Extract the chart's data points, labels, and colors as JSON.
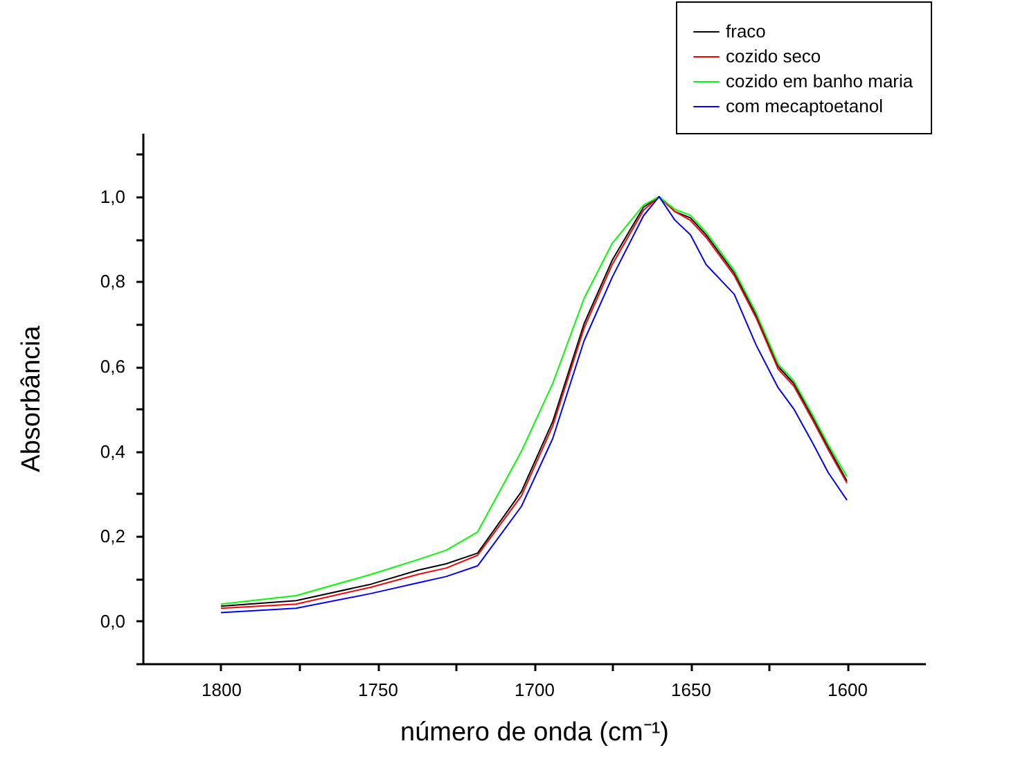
{
  "chart_data": {
    "type": "line",
    "xlabel": "número de onda (cm⁻¹)",
    "ylabel": "Absorbância",
    "x": [
      1800,
      1776,
      1752,
      1737,
      1728,
      1718,
      1704,
      1694,
      1684,
      1675,
      1665,
      1660,
      1655,
      1650,
      1645,
      1636,
      1629,
      1622,
      1617,
      1611,
      1606,
      1600
    ],
    "series": [
      {
        "name": "fraco",
        "color": "#000000",
        "values": [
          0.035,
          0.048,
          0.087,
          0.12,
          0.135,
          0.16,
          0.305,
          0.47,
          0.7,
          0.85,
          0.975,
          1.0,
          0.965,
          0.95,
          0.91,
          0.82,
          0.72,
          0.6,
          0.56,
          0.48,
          0.41,
          0.33
        ]
      },
      {
        "name": "cozido seco",
        "color": "#ff0000",
        "values": [
          0.03,
          0.04,
          0.08,
          0.11,
          0.125,
          0.155,
          0.295,
          0.46,
          0.69,
          0.84,
          0.968,
          1.0,
          0.965,
          0.944,
          0.904,
          0.814,
          0.714,
          0.594,
          0.554,
          0.474,
          0.404,
          0.325
        ]
      },
      {
        "name": "cozido em banho maria",
        "color": "#00ff00",
        "values": [
          0.04,
          0.06,
          0.11,
          0.145,
          0.167,
          0.21,
          0.4,
          0.56,
          0.76,
          0.89,
          0.98,
          1.0,
          0.97,
          0.956,
          0.916,
          0.826,
          0.726,
          0.606,
          0.566,
          0.486,
          0.416,
          0.34
        ]
      },
      {
        "name": "com mecaptoetanol",
        "color": "#0000ff",
        "values": [
          0.02,
          0.03,
          0.065,
          0.09,
          0.105,
          0.13,
          0.27,
          0.43,
          0.66,
          0.81,
          0.955,
          1.0,
          0.945,
          0.91,
          0.84,
          0.77,
          0.65,
          0.55,
          0.5,
          0.42,
          0.35,
          0.285
        ]
      }
    ],
    "xlim": [
      1825,
      1575
    ],
    "xticks": [
      1800,
      {
        "value": 1775,
        "label": null
      },
      1750,
      {
        "value": 1725,
        "label": null
      },
      1700,
      {
        "value": 1675,
        "label": null
      },
      1650,
      {
        "value": 1625,
        "label": null
      },
      1600
    ],
    "ylim": [
      -0.1,
      1.15
    ],
    "yticks": [
      {
        "value": -0.1,
        "label": null
      },
      {
        "value": 0,
        "label": "0,0"
      },
      {
        "value": 0.1,
        "label": null
      },
      {
        "value": 0.2,
        "label": "0,2"
      },
      {
        "value": 0.3,
        "label": null
      },
      {
        "value": 0.4,
        "label": "0,4"
      },
      {
        "value": 0.5,
        "label": null
      },
      {
        "value": 0.6,
        "label": "0,6"
      },
      {
        "value": 0.7,
        "label": null
      },
      {
        "value": 0.8,
        "label": "0,8"
      },
      {
        "value": 0.9,
        "label": null
      },
      {
        "value": 1.0,
        "label": "1,0"
      },
      {
        "value": 1.1,
        "label": null
      }
    ],
    "legend": "top right",
    "grid": false,
    "marker": "none",
    "line_style": "solid"
  }
}
